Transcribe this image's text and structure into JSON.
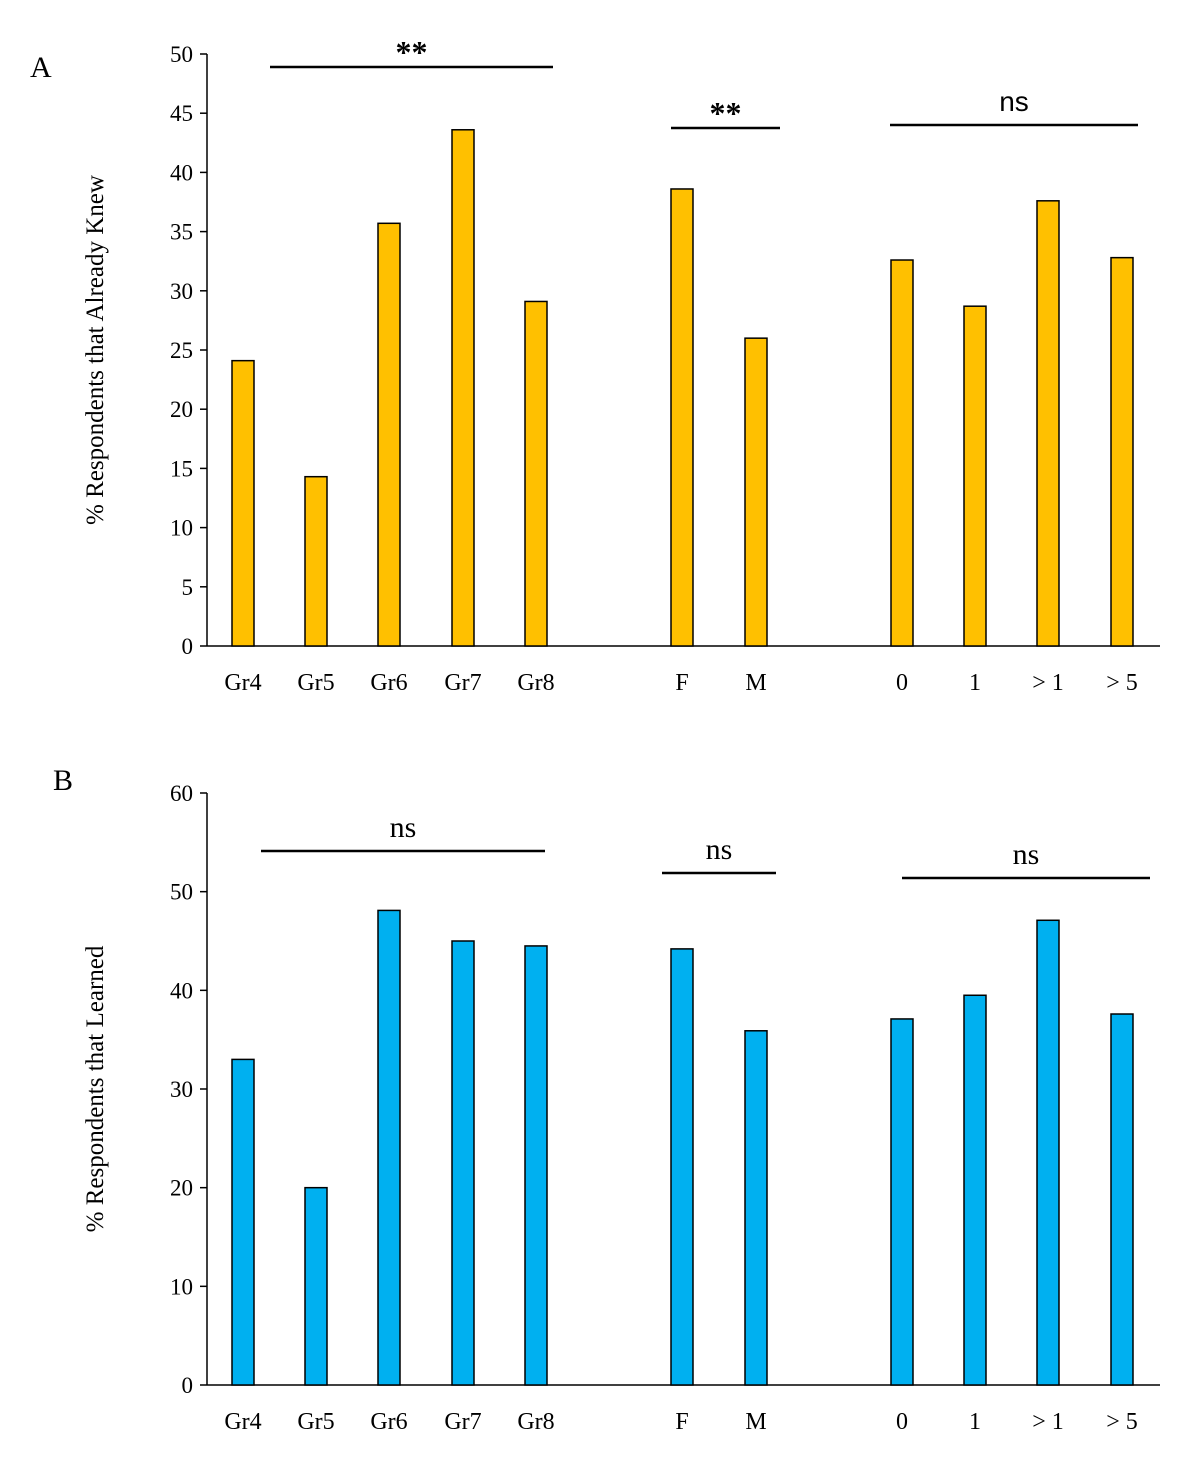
{
  "chart_data": [
    {
      "panel_label": "A",
      "type": "bar",
      "title": "",
      "xlabel": "",
      "ylabel": "% Respondents that Already Knew",
      "ylim": [
        0,
        50
      ],
      "yticks": [
        "0",
        "5",
        "10",
        "15",
        "20",
        "25",
        "30",
        "35",
        "40",
        "45",
        "50"
      ],
      "grid": false,
      "bar_color": "#FFC000",
      "groups": [
        {
          "categories": [
            "Gr4",
            "Gr5",
            "Gr6",
            "Gr7",
            "Gr8"
          ],
          "values": [
            24.1,
            14.3,
            35.7,
            43.6,
            29.1
          ],
          "significance": "**"
        },
        {
          "categories": [
            "F",
            "M"
          ],
          "values": [
            38.6,
            26.0
          ],
          "significance": "**"
        },
        {
          "categories": [
            "0",
            "1",
            "> 1",
            "> 5"
          ],
          "values": [
            32.6,
            28.7,
            37.6,
            32.8
          ],
          "significance": "ns"
        }
      ]
    },
    {
      "panel_label": "B",
      "type": "bar",
      "title": "",
      "xlabel": "",
      "ylabel": "% Respondents that Learned",
      "ylim": [
        0,
        60
      ],
      "yticks": [
        "0",
        "10",
        "20",
        "30",
        "40",
        "50",
        "60"
      ],
      "grid": false,
      "bar_color": "#00B0F0",
      "groups": [
        {
          "categories": [
            "Gr4",
            "Gr5",
            "Gr6",
            "Gr7",
            "Gr8"
          ],
          "values": [
            33.0,
            20.0,
            48.1,
            45.0,
            44.5
          ],
          "significance": "ns"
        },
        {
          "categories": [
            "F",
            "M"
          ],
          "values": [
            44.2,
            35.9
          ],
          "significance": "ns"
        },
        {
          "categories": [
            "0",
            "1",
            "> 1",
            "> 5"
          ],
          "values": [
            37.1,
            39.5,
            47.1,
            37.6
          ],
          "significance": "ns"
        }
      ]
    }
  ]
}
